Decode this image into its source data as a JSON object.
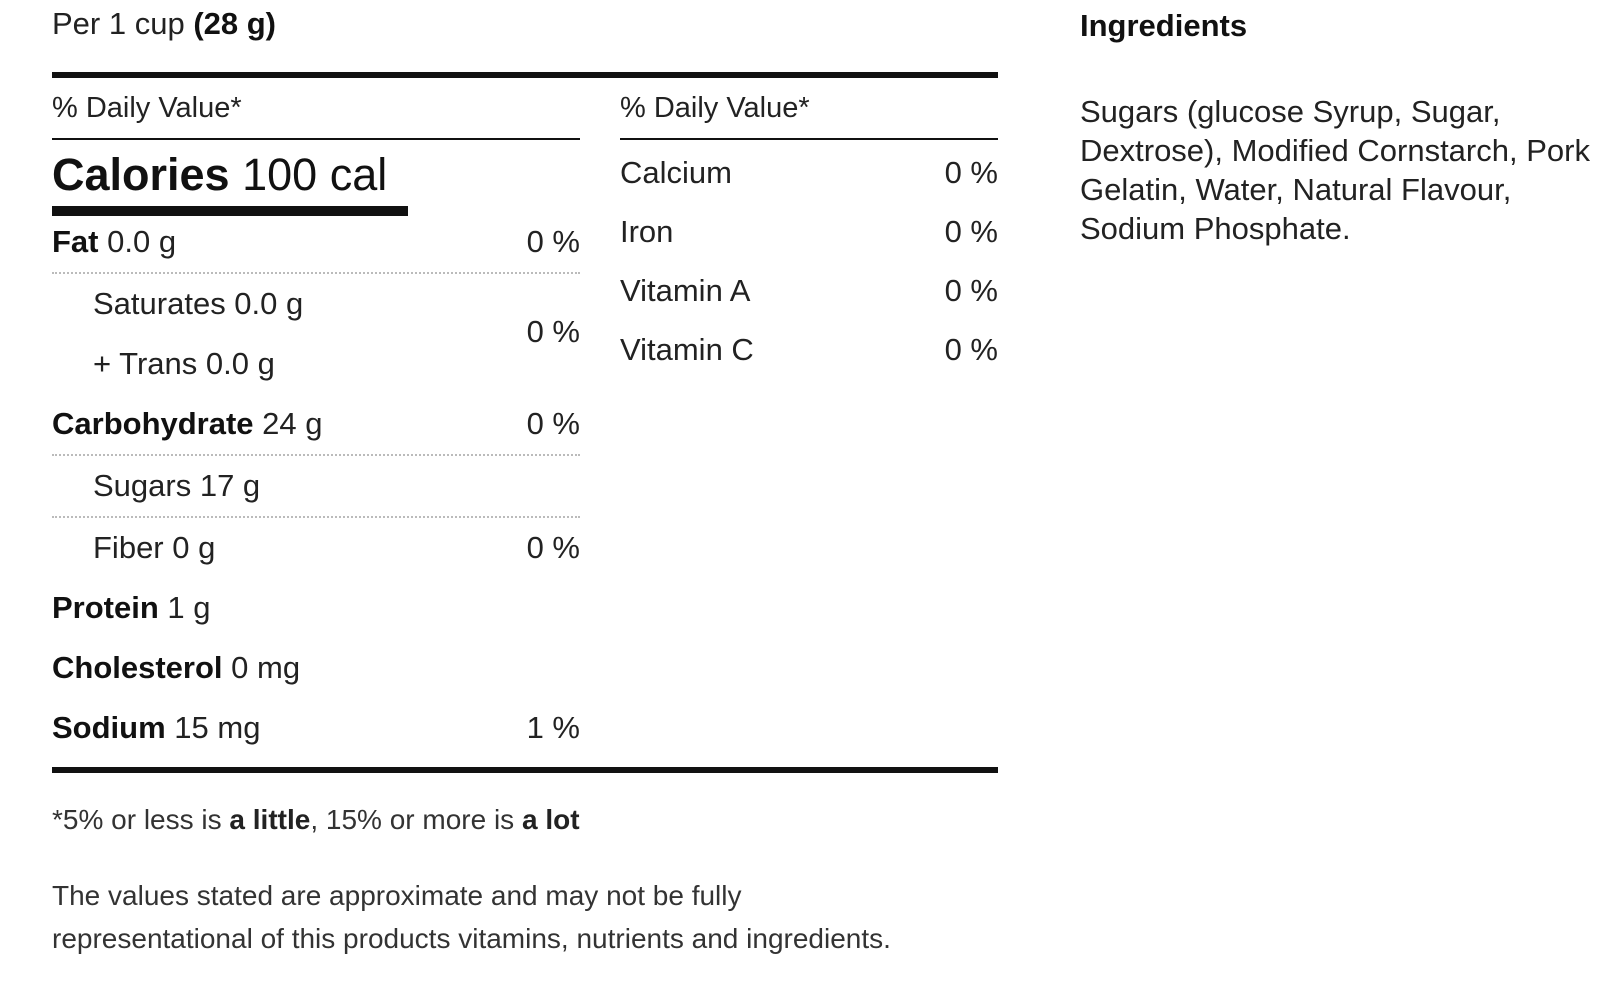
{
  "serving": {
    "prefix": "Per 1 cup",
    "amount": "(28 g)"
  },
  "left_col": {
    "dv_header": "% Daily Value*",
    "calories": {
      "label": "Calories",
      "value": "100 cal"
    },
    "fat": {
      "label": "Fat",
      "amount": "0.0 g",
      "pct": "0 %"
    },
    "saturates": {
      "label": "Saturates 0.0 g"
    },
    "trans": {
      "label": "+ Trans 0.0 g"
    },
    "sat_trans_pct": "0 %",
    "carbohydrate": {
      "label": "Carbohydrate",
      "amount": "24 g",
      "pct": "0 %"
    },
    "sugars": {
      "label": "Sugars 17 g"
    },
    "fiber": {
      "label": "Fiber 0 g",
      "pct": "0 %"
    },
    "protein": {
      "label": "Protein",
      "amount": "1 g"
    },
    "cholesterol": {
      "label": "Cholesterol",
      "amount": "0 mg"
    },
    "sodium": {
      "label": "Sodium",
      "amount": "15 mg",
      "pct": "1 %"
    }
  },
  "right_col": {
    "dv_header": "% Daily Value*",
    "vitamins": [
      {
        "label": "Calcium",
        "pct": "0 %"
      },
      {
        "label": "Iron",
        "pct": "0 %"
      },
      {
        "label": "Vitamin A",
        "pct": "0 %"
      },
      {
        "label": "Vitamin C",
        "pct": "0 %"
      }
    ]
  },
  "footnote": {
    "p1": "*5% or less is ",
    "b1": "a little",
    "p2": ", 15% or more is ",
    "b2": "a lot"
  },
  "disclaimer": "The values stated are approximate and may not be fully representational of this products vitamins, nutrients and ingredients.",
  "ingredients": {
    "title": "Ingredients",
    "text": "Sugars (glucose Syrup, Sugar, Dextrose), Modified Cornstarch, Pork Gelatin, Water, Natural Flavour, Sodium Phosphate."
  }
}
